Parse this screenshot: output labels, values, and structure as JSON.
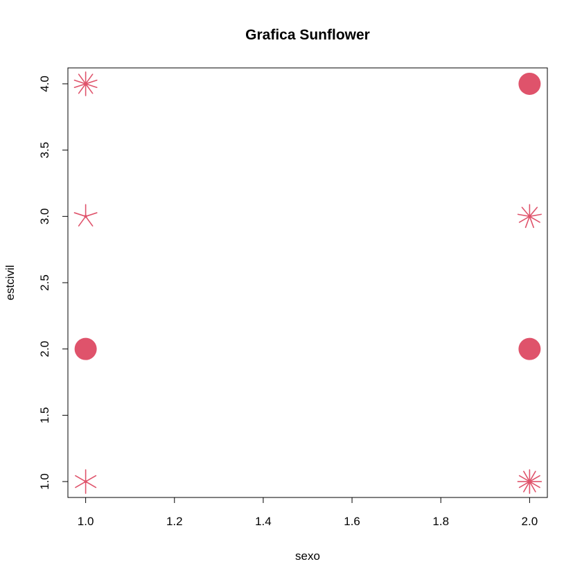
{
  "chart_data": {
    "type": "scatter",
    "title": "Grafica Sunflower",
    "xlabel": "sexo",
    "ylabel": "estcivil",
    "xlim": [
      0.96,
      2.04
    ],
    "ylim": [
      0.88,
      4.12
    ],
    "x_ticks": [
      "1.0",
      "1.2",
      "1.4",
      "1.6",
      "1.8",
      "2.0"
    ],
    "y_ticks": [
      "1.0",
      "1.5",
      "2.0",
      "2.5",
      "3.0",
      "3.5",
      "4.0"
    ],
    "grid": false,
    "color": "#DF536B",
    "points": [
      {
        "x": 1,
        "y": 4,
        "count": 10
      },
      {
        "x": 1,
        "y": 3,
        "count": 5
      },
      {
        "x": 1,
        "y": 2,
        "count": 1
      },
      {
        "x": 1,
        "y": 1,
        "count": 6
      },
      {
        "x": 2,
        "y": 4,
        "count": 1
      },
      {
        "x": 2,
        "y": 3,
        "count": 9
      },
      {
        "x": 2,
        "y": 2,
        "count": 1
      },
      {
        "x": 2,
        "y": 1,
        "count": 12
      }
    ]
  }
}
